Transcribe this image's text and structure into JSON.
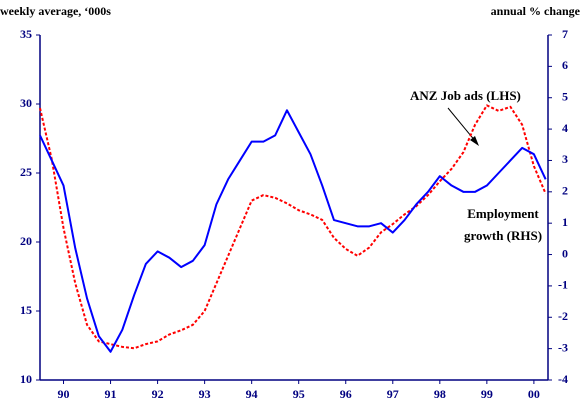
{
  "chart_data": {
    "type": "line",
    "ylabel": "weekly average, ‘000s",
    "y2label": "annual % change",
    "annotations": [
      "ANZ Job ads (LHS)",
      "Employment",
      "growth (RHS)"
    ],
    "x": [
      1990.0,
      1990.25,
      1990.5,
      1990.75,
      1991.0,
      1991.25,
      1991.5,
      1991.75,
      1992.0,
      1992.25,
      1992.5,
      1992.75,
      1993.0,
      1993.25,
      1993.5,
      1993.75,
      1994.0,
      1994.25,
      1994.5,
      1994.75,
      1995.0,
      1995.25,
      1995.5,
      1995.75,
      1996.0,
      1996.25,
      1996.5,
      1996.75,
      1997.0,
      1997.25,
      1997.5,
      1997.75,
      1998.0,
      1998.25,
      1998.5,
      1998.75,
      1999.0,
      1999.25,
      1999.5,
      1999.75,
      2000.0,
      2000.25,
      2000.5,
      2000.75
    ],
    "series": [
      {
        "name": "ANZ Job ads (LHS)",
        "color": "#ff0000",
        "dash": true,
        "values": [
          29.7,
          26,
          21,
          17,
          14,
          12.8,
          12.6,
          12.4,
          12.3,
          12.6,
          12.8,
          13.3,
          13.6,
          14,
          15,
          17,
          19,
          21,
          23,
          23.4,
          23.2,
          22.8,
          22.3,
          22,
          21.6,
          20.3,
          19.5,
          19,
          19.6,
          20.7,
          21.3,
          22,
          22.6,
          23.4,
          24.4,
          25.3,
          26.5,
          28.5,
          29.9,
          29.5,
          29.8,
          28.5,
          25.5,
          23.5
        ]
      },
      {
        "name": "Employment growth (RHS)",
        "color": "#0000ff",
        "axis": "y2",
        "values": [
          3.8,
          3.0,
          2.2,
          0.2,
          -1.4,
          -2.6,
          -3.1,
          -2.4,
          -1.3,
          -0.3,
          0.1,
          -0.1,
          -0.4,
          -0.2,
          0.3,
          1.6,
          2.4,
          3.0,
          3.6,
          3.6,
          3.8,
          4.6,
          3.9,
          3.2,
          2.2,
          1.1,
          1.0,
          0.9,
          0.9,
          1.0,
          0.7,
          1.1,
          1.6,
          2.0,
          2.5,
          2.2,
          2.0,
          2.0,
          2.2,
          2.6,
          3.0,
          3.4,
          3.2,
          2.4
        ]
      }
    ],
    "xlim": [
      1990.0,
      2000.8
    ],
    "xticks": [
      {
        "value": 1990.5,
        "label": "90"
      },
      {
        "value": 1991.5,
        "label": "91"
      },
      {
        "value": 1992.5,
        "label": "92"
      },
      {
        "value": 1993.5,
        "label": "93"
      },
      {
        "value": 1994.5,
        "label": "94"
      },
      {
        "value": 1995.5,
        "label": "95"
      },
      {
        "value": 1996.5,
        "label": "96"
      },
      {
        "value": 1997.5,
        "label": "97"
      },
      {
        "value": 1998.5,
        "label": "98"
      },
      {
        "value": 1999.5,
        "label": "99"
      },
      {
        "value": 2000.5,
        "label": "00"
      }
    ],
    "ylim": [
      10,
      35
    ],
    "yticks": [
      10,
      15,
      20,
      25,
      30,
      35
    ],
    "y2lim": [
      -4,
      7
    ],
    "y2ticks": [
      -4,
      -3,
      -2,
      -1,
      0,
      1,
      2,
      3,
      4,
      5,
      6,
      7
    ],
    "grid": false
  }
}
